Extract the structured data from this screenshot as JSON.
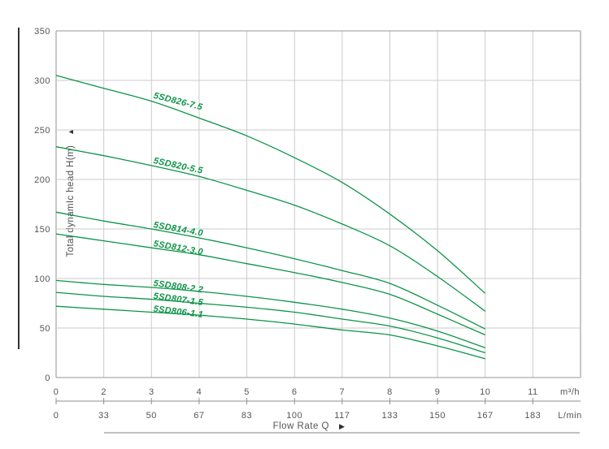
{
  "page": {
    "background": "#ffffff"
  },
  "colors": {
    "curve": "#0c9448",
    "grid": "#cbcbcb",
    "border": "#ababab",
    "text": "#555555",
    "accent_line": "#333333",
    "axis2_line": "#8f8f8f",
    "bottom_rule": "#9a9a9a"
  },
  "y_axis": {
    "title": "Total dynamIc head H(m)",
    "arrow": "▲",
    "ticks": [
      "350",
      "300",
      "250",
      "200",
      "150",
      "100",
      "50",
      "0"
    ]
  },
  "x_axis": {
    "primary_labels": [
      "0",
      "2",
      "3",
      "4",
      "5",
      "6",
      "7",
      "8",
      "9",
      "10",
      "11"
    ],
    "primary_unit": "m³/h",
    "secondary_labels": [
      "0",
      "33",
      "50",
      "67",
      "83",
      "100",
      "117",
      "133",
      "150",
      "167",
      "183"
    ],
    "secondary_unit": "L/min",
    "title": "Flow Rate Q",
    "arrow": "▶"
  },
  "chart_data": {
    "type": "line",
    "title": "",
    "xlabel": "Flow Rate Q",
    "ylabel": "Total dynamIc head H(m)",
    "x_unit_primary": "m³/h",
    "x_unit_secondary": "L/min",
    "x_m3h": [
      0,
      2,
      3,
      4,
      5,
      6,
      7,
      8,
      9,
      10
    ],
    "x_lmin": [
      0,
      33,
      50,
      67,
      83,
      100,
      117,
      133,
      150,
      167
    ],
    "ylim": [
      0,
      350
    ],
    "y_grid_step": 50,
    "grid": true,
    "legend_position": "inline-curve-labels",
    "series": [
      {
        "name": "5SD826-7.5",
        "values": [
          305,
          292,
          279,
          262,
          244,
          222,
          197,
          165,
          128,
          85
        ],
        "label_angle": 14,
        "label_dy": -4
      },
      {
        "name": "5SD820-5.5",
        "values": [
          233,
          224,
          214,
          203,
          189,
          174,
          155,
          133,
          102,
          67
        ],
        "label_angle": 12,
        "label_dy": -3
      },
      {
        "name": "5SD814-4.0",
        "values": [
          167,
          158,
          150,
          141,
          131,
          120,
          108,
          95,
          73,
          49
        ],
        "label_angle": 10,
        "label_dy": -2
      },
      {
        "name": "5SD812-3.0",
        "values": [
          145,
          138,
          131,
          124,
          115,
          106,
          96,
          84,
          64,
          43
        ],
        "label_angle": 10,
        "label_dy": -2
      },
      {
        "name": "5SD808-2.2",
        "values": [
          98,
          94,
          91,
          87,
          82,
          76,
          69,
          60,
          47,
          30
        ],
        "label_angle": 8,
        "label_dy": -2
      },
      {
        "name": "5SD807-1.5",
        "values": [
          86,
          82,
          79,
          75,
          71,
          66,
          59,
          52,
          40,
          25
        ],
        "label_angle": 8,
        "label_dy": -1
      },
      {
        "name": "5SD806-1.1",
        "values": [
          72,
          69,
          66,
          63,
          59,
          54,
          48,
          43,
          32,
          19
        ],
        "label_angle": 7,
        "label_dy": -1
      }
    ]
  }
}
